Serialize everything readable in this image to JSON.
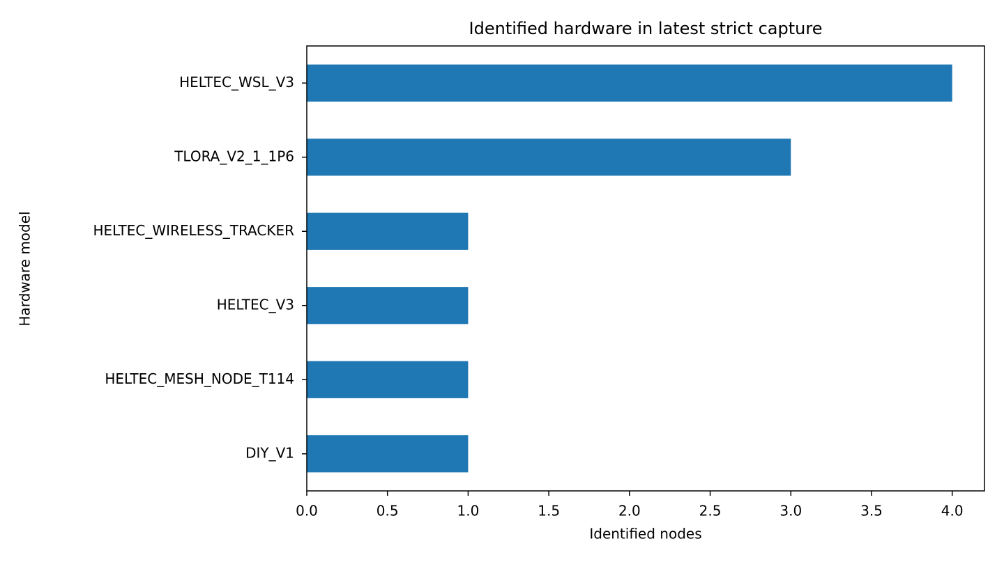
{
  "chart_data": {
    "type": "barh",
    "title": "Identified hardware in latest strict capture",
    "x_label": "Identified nodes",
    "y_label": "Hardware model",
    "categories": [
      "HELTEC_WSL_V3",
      "TLORA_V2_1_1P6",
      "HELTEC_WIRELESS_TRACKER",
      "HELTEC_V3",
      "HELTEC_MESH_NODE_T114",
      "DIY_V1"
    ],
    "values": [
      4,
      3,
      1,
      1,
      1,
      1
    ],
    "color": "#1f77b4",
    "xlim": [
      0,
      4.2
    ],
    "xticks": [
      {
        "value": 0,
        "label": "0.0"
      },
      0.5,
      {
        "value": 1,
        "label": "1.0"
      },
      1.5,
      {
        "value": 2,
        "label": "2.0"
      },
      2.5,
      {
        "value": 3,
        "label": "3.0"
      },
      3.5,
      {
        "value": 4,
        "label": "4.0"
      }
    ],
    "grid": false
  }
}
